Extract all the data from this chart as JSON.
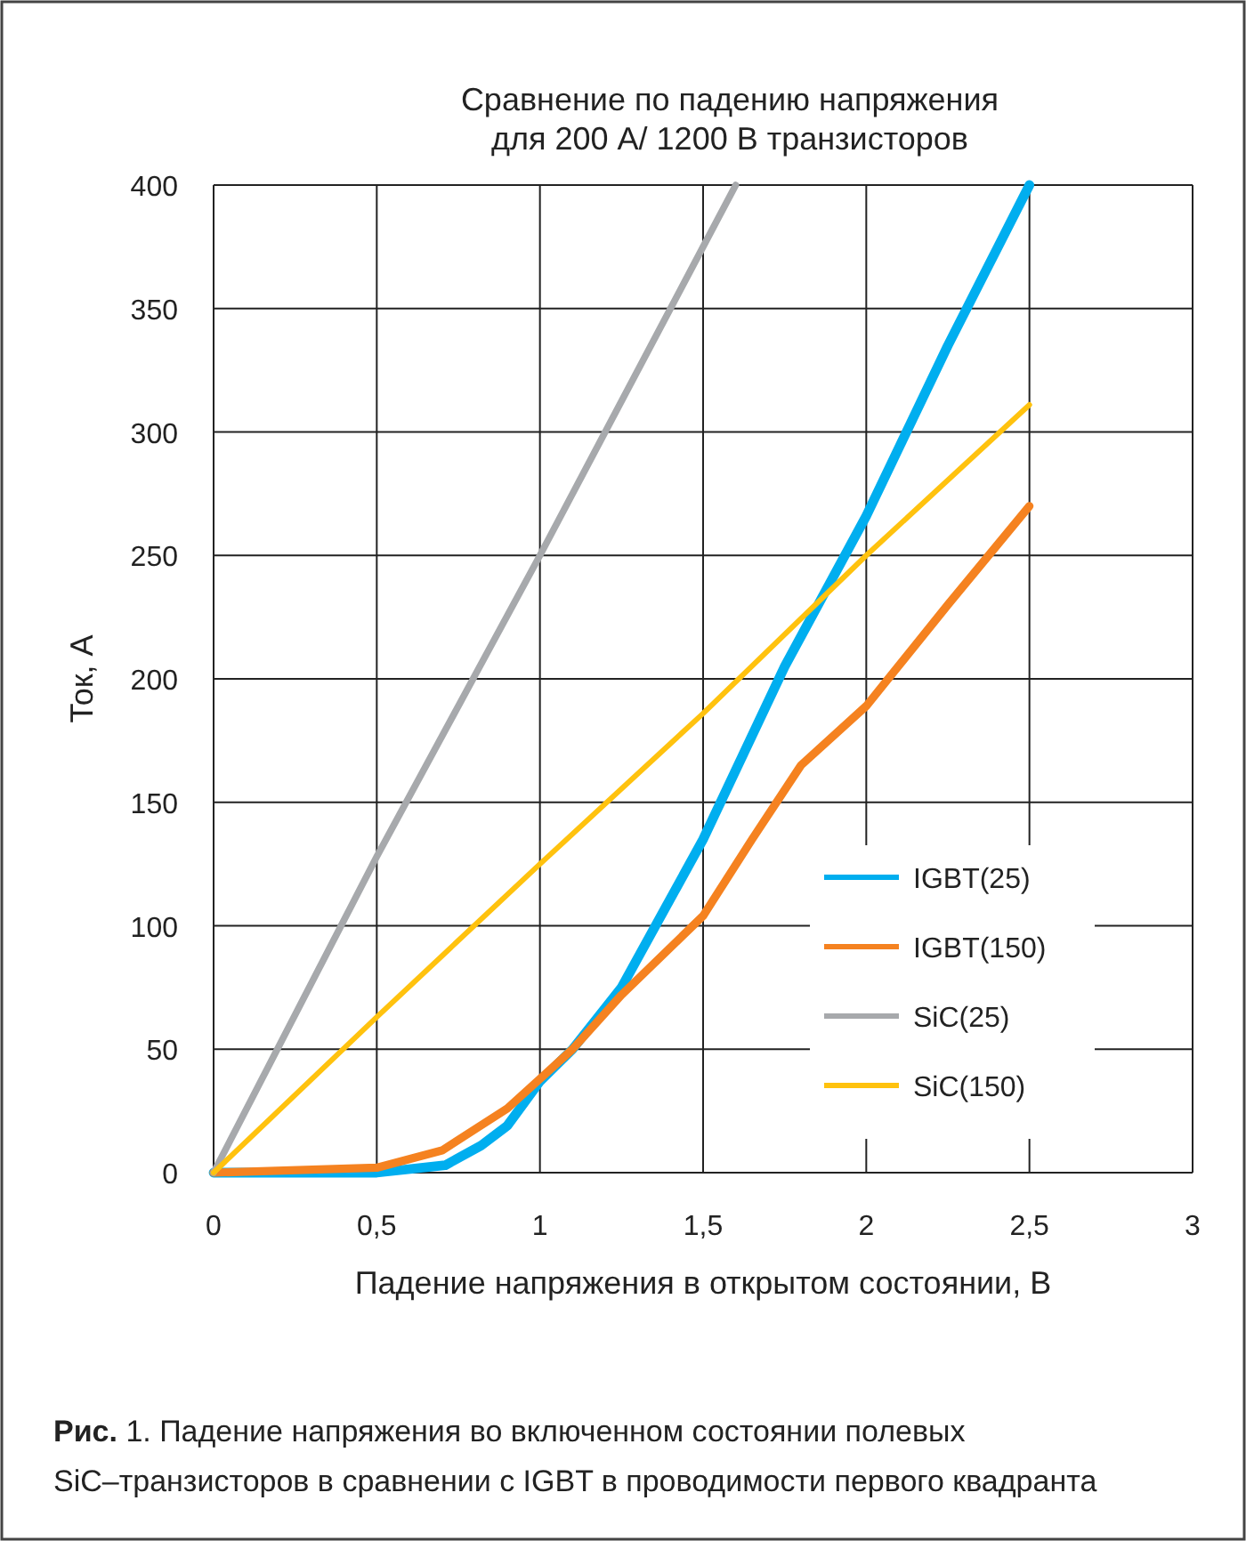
{
  "chart_data": {
    "type": "line",
    "title": "Сравнение по падению напряжения\nдля 200 А/ 1200 В транзисторов",
    "xlabel": "Падение напряжения в открытом состоянии, В",
    "ylabel": "Ток, А",
    "xlim": [
      0,
      3
    ],
    "xticks": [
      {
        "value": 0,
        "label": "0"
      },
      {
        "value": 0.5,
        "label": "0,5"
      },
      {
        "value": 1,
        "label": "1"
      },
      {
        "value": 1.5,
        "label": "1,5"
      },
      {
        "value": 2,
        "label": "2"
      },
      {
        "value": 2.5,
        "label": "2,5"
      },
      {
        "value": 3,
        "label": "3"
      }
    ],
    "ylim": [
      0,
      400
    ],
    "yticks": [
      0,
      50,
      100,
      150,
      200,
      250,
      300,
      350,
      400
    ],
    "grid": true,
    "legend": "bottom right",
    "marker": "none",
    "line_style": "solid",
    "series": [
      {
        "name": "IGBT(25)",
        "color": "#00aeef",
        "x": [
          0,
          0.5,
          0.71,
          0.82,
          0.9,
          1,
          1.1,
          1.25,
          1.5,
          1.75,
          2,
          2.25,
          2.5
        ],
        "values": [
          0,
          0,
          3,
          11,
          19,
          37,
          50,
          75,
          135,
          205,
          266,
          335,
          400
        ]
      },
      {
        "name": "IGBT(150)",
        "color": "#f58220",
        "x": [
          0,
          0.5,
          0.7,
          0.9,
          1,
          1.1,
          1.25,
          1.5,
          1.65,
          1.8,
          2,
          2.25,
          2.5
        ],
        "values": [
          0,
          2,
          9,
          26,
          38,
          50,
          72,
          104,
          135,
          165,
          189,
          230,
          270
        ]
      },
      {
        "name": "SiC(25)",
        "color": "#a7a9ac",
        "x": [
          0,
          0.5,
          1,
          1.5,
          1.6
        ],
        "values": [
          0,
          128,
          250,
          375,
          400
        ]
      },
      {
        "name": "SiC(150)",
        "color": "#ffc20e",
        "x": [
          0,
          0.5,
          1,
          1.5,
          2,
          2.5
        ],
        "values": [
          0,
          63,
          125,
          186,
          250,
          311
        ]
      }
    ],
    "annotations": [
      "Рис. 1. Падение напряжения во включенном состоянии полевых\nSiC–транзисторов в сравнении с IGBT в проводимости первого квадранта"
    ]
  }
}
